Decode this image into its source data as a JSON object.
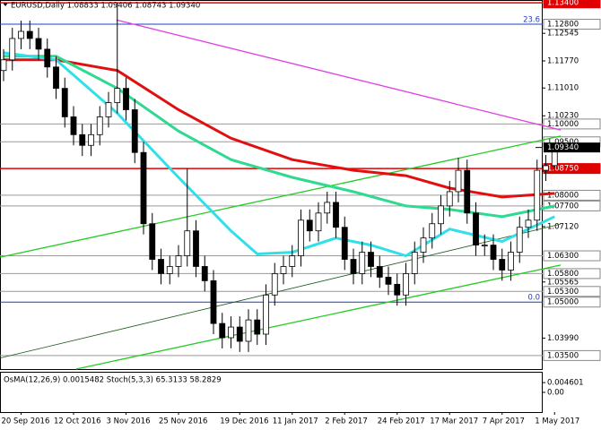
{
  "chart_data": {
    "type": "candlestick",
    "title": "EURUSD,Daily 1.08833 1.09406 1.08743 1.09340",
    "categories": [
      null,
      null,
      "20 Sep 2016",
      null,
      null,
      null,
      null,
      null,
      "12 Oct 2016",
      null,
      null,
      null,
      null,
      null,
      "3 Nov 2016",
      null,
      null,
      null,
      null,
      null,
      "25 Nov 2016",
      null,
      null,
      null,
      null,
      null,
      null,
      "19 Dec 2016",
      null,
      null,
      null,
      null,
      null,
      "11 Jan 2017",
      null,
      null,
      null,
      null,
      null,
      "2 Feb 2017",
      null,
      null,
      null,
      null,
      null,
      "24 Feb 2017",
      null,
      null,
      null,
      null,
      null,
      "17 Mar 2017",
      null,
      null,
      null,
      null,
      null,
      "7 Apr 2017",
      null,
      null,
      null,
      null,
      null,
      "1 May 2017"
    ],
    "open": [
      1.115,
      1.118,
      1.124,
      1.126,
      1.124,
      1.121,
      1.116,
      1.11,
      1.102,
      1.097,
      1.094,
      1.097,
      1.102,
      1.106,
      1.11,
      1.104,
      1.092,
      1.072,
      1.062,
      1.058,
      1.06,
      1.063,
      1.07,
      1.06,
      1.056,
      1.044,
      1.04,
      1.043,
      1.039,
      1.045,
      1.041,
      1.052,
      1.058,
      1.06,
      1.063,
      1.073,
      1.07,
      1.075,
      1.078,
      1.071,
      1.062,
      1.058,
      1.064,
      1.06,
      1.057,
      1.055,
      1.052,
      1.058,
      1.064,
      1.068,
      1.072,
      1.077,
      1.081,
      1.087,
      1.075,
      1.066,
      1.066,
      1.062,
      1.059,
      1.064,
      1.071,
      1.073,
      1.087,
      1.08833
    ],
    "high": [
      1.121,
      1.127,
      1.129,
      1.129,
      1.127,
      1.124,
      1.119,
      1.113,
      1.105,
      1.1,
      1.1,
      1.105,
      1.109,
      1.134,
      1.113,
      1.107,
      1.095,
      1.075,
      1.065,
      1.063,
      1.066,
      1.0875,
      1.073,
      1.063,
      1.059,
      1.047,
      1.046,
      1.046,
      1.048,
      1.048,
      1.055,
      1.061,
      1.063,
      1.066,
      1.076,
      1.076,
      1.078,
      1.081,
      1.081,
      1.074,
      1.065,
      1.067,
      1.067,
      1.063,
      1.06,
      1.058,
      1.061,
      1.067,
      1.071,
      1.075,
      1.08,
      1.084,
      1.0905,
      1.09,
      1.078,
      1.069,
      1.069,
      1.065,
      1.067,
      1.074,
      1.076,
      1.09,
      1.0913,
      1.09406
    ],
    "low": [
      1.112,
      1.115,
      1.121,
      1.121,
      1.118,
      1.113,
      1.107,
      1.099,
      1.094,
      1.091,
      1.091,
      1.094,
      1.099,
      1.103,
      1.101,
      1.089,
      1.069,
      1.059,
      1.055,
      1.055,
      1.057,
      1.06,
      1.057,
      1.053,
      1.041,
      1.037,
      1.037,
      1.036,
      1.036,
      1.038,
      1.038,
      1.049,
      1.055,
      1.057,
      1.06,
      1.067,
      1.067,
      1.072,
      1.068,
      1.059,
      1.055,
      1.055,
      1.057,
      1.054,
      1.052,
      1.049,
      1.049,
      1.055,
      1.061,
      1.065,
      1.069,
      1.074,
      1.078,
      1.072,
      1.063,
      1.063,
      1.059,
      1.056,
      1.056,
      1.061,
      1.068,
      1.07,
      1.084,
      1.08743
    ],
    "close": [
      1.118,
      1.124,
      1.126,
      1.124,
      1.121,
      1.116,
      1.11,
      1.102,
      1.097,
      1.094,
      1.097,
      1.102,
      1.106,
      1.11,
      1.104,
      1.092,
      1.072,
      1.062,
      1.058,
      1.06,
      1.063,
      1.07,
      1.06,
      1.056,
      1.044,
      1.04,
      1.043,
      1.039,
      1.045,
      1.041,
      1.052,
      1.058,
      1.06,
      1.063,
      1.073,
      1.07,
      1.075,
      1.078,
      1.071,
      1.062,
      1.058,
      1.064,
      1.06,
      1.057,
      1.055,
      1.052,
      1.058,
      1.064,
      1.068,
      1.072,
      1.077,
      1.081,
      1.087,
      1.075,
      1.066,
      1.066,
      1.062,
      1.059,
      1.064,
      1.071,
      1.073,
      1.087,
      1.0883,
      1.0934
    ],
    "ylim": [
      1.0312,
      1.1348
    ],
    "yticks": [
      {
        "value": 1.12545,
        "label": "1.12545"
      },
      {
        "value": 1.1177,
        "label": "1.11770"
      },
      {
        "value": 1.1101,
        "label": "1.11010"
      },
      {
        "value": 1.1023,
        "label": "1.10230"
      },
      {
        "value": 1.0867,
        "label": "1.08670"
      },
      {
        "value": 1.0712,
        "label": "1.07120"
      },
      {
        "value": 1.05565,
        "label": "1.05565"
      },
      {
        "value": 1.0399,
        "label": "1.03990"
      }
    ],
    "levels": [
      {
        "value": 1.134,
        "label": "1.13400",
        "color": "#e00000"
      },
      {
        "value": 1.128,
        "label": "1.12800",
        "color": "#1f3fbf"
      },
      {
        "value": 1.1,
        "label": "1.10000",
        "color": "#9a9a9a"
      },
      {
        "value": 1.095,
        "label": "1.09500",
        "color": "#9a9a9a"
      },
      {
        "value": 1.0875,
        "label": "1.08750",
        "color": "#e00000"
      },
      {
        "value": 1.08,
        "label": "1.08000",
        "color": "#9a9a9a"
      },
      {
        "value": 1.077,
        "label": "1.07700",
        "color": "#9a9a9a"
      },
      {
        "value": 1.063,
        "label": "1.06300",
        "color": "#9a9a9a"
      },
      {
        "value": 1.058,
        "label": "1.05800",
        "color": "#9a9a9a"
      },
      {
        "value": 1.053,
        "label": "1.05300",
        "color": "#9a9a9a"
      },
      {
        "value": 1.05,
        "label": "1.05000",
        "color": "#1f3fbf"
      },
      {
        "value": 1.035,
        "label": "1.03500",
        "color": "#9a9a9a"
      }
    ],
    "current_price": {
      "value": 1.0934,
      "label": "1.09340"
    },
    "fib_labels": [
      {
        "value": 1.128,
        "label": "23.6"
      },
      {
        "value": 1.05,
        "label": "0.0"
      }
    ],
    "moving_averages": [
      {
        "color": "#e01010",
        "x": [
          0,
          6,
          13,
          20,
          26,
          33,
          40,
          46,
          51,
          57,
          63
        ],
        "values": [
          1.118,
          1.118,
          1.115,
          1.104,
          1.096,
          1.09,
          1.087,
          1.0855,
          1.082,
          1.0795,
          1.0805
        ]
      },
      {
        "color": "#2fd98f",
        "x": [
          0,
          6,
          13,
          20,
          26,
          33,
          40,
          46,
          51,
          57,
          63
        ],
        "values": [
          1.119,
          1.119,
          1.11,
          1.098,
          1.09,
          1.085,
          1.081,
          1.077,
          1.076,
          1.074,
          1.077
        ]
      },
      {
        "color": "#2fe0e8",
        "x": [
          0,
          6,
          13,
          20,
          26,
          29,
          33,
          38,
          42,
          46,
          51,
          57,
          63
        ],
        "values": [
          1.12,
          1.118,
          1.103,
          1.085,
          1.07,
          1.0635,
          1.064,
          1.068,
          1.066,
          1.063,
          1.0705,
          1.067,
          1.074
        ]
      }
    ],
    "trendlines": [
      {
        "color": "#22cc22",
        "x": [
          -0.4,
          63.7
        ],
        "values": [
          1.0626,
          1.0966
        ]
      },
      {
        "color": "#22cc22",
        "x": [
          8.3,
          63.7
        ],
        "values": [
          1.0312,
          1.0604
        ]
      },
      {
        "color": "#1a5a1a",
        "x": [
          -0.4,
          63.7
        ],
        "values": [
          1.0343,
          1.0719
        ]
      },
      {
        "color": "#e040e0",
        "x": [
          12.9,
          63.7
        ],
        "values": [
          1.1292,
          1.0983
        ]
      }
    ],
    "indicator": {
      "title": "OsMA(12,26,9) 0.0015482 Stoch(5,3,3) 65.3133 58.2829",
      "ylim": [
        -0.0093,
        0.0097
      ],
      "yticks": [
        {
          "value": 0.004601,
          "label": "0.004601"
        },
        {
          "value": 0,
          "label": "0.00"
        }
      ]
    }
  }
}
